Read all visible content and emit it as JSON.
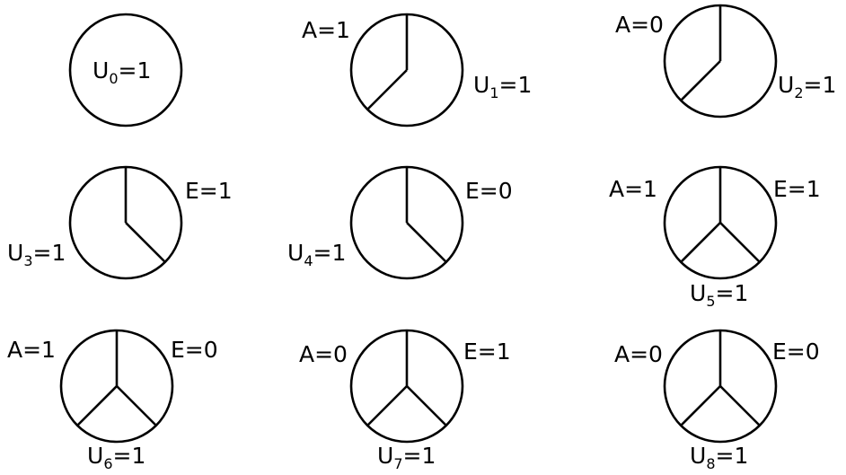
{
  "diagrams": [
    {
      "labels": {
        "U": "U",
        "U_sub": "0",
        "U_val": "=1"
      }
    },
    {
      "labels": {
        "A": "A=1",
        "U": "U",
        "U_sub": "1",
        "U_val": "=1"
      }
    },
    {
      "labels": {
        "A": "A=0",
        "U": "U",
        "U_sub": "2",
        "U_val": "=1"
      }
    },
    {
      "labels": {
        "E": "E=1",
        "U": "U",
        "U_sub": "3",
        "U_val": "=1"
      }
    },
    {
      "labels": {
        "E": "E=0",
        "U": "U",
        "U_sub": "4",
        "U_val": "=1"
      }
    },
    {
      "labels": {
        "A": "A=1",
        "E": "E=1",
        "U": "U",
        "U_sub": "5",
        "U_val": "=1"
      }
    },
    {
      "labels": {
        "A": "A=1",
        "E": "E=0",
        "U": "U",
        "U_sub": "6",
        "U_val": "=1"
      }
    },
    {
      "labels": {
        "A": "A=0",
        "E": "E=1",
        "U": "U",
        "U_sub": "7",
        "U_val": "=1"
      }
    },
    {
      "labels": {
        "A": "A=0",
        "E": "E=0",
        "U": "U",
        "U_sub": "8",
        "U_val": "=1"
      }
    }
  ]
}
